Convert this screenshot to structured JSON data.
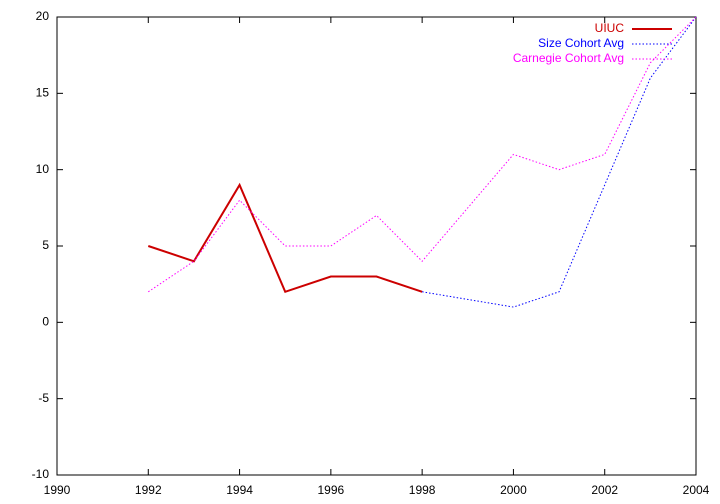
{
  "chart_data": {
    "type": "line",
    "x": [
      1992,
      1993,
      1994,
      1995,
      1996,
      1997,
      1998,
      1999,
      2000,
      2001,
      2002,
      2003,
      2004
    ],
    "series": [
      {
        "name": "UIUC",
        "color": "#cc0000",
        "style": "solid",
        "values": [
          5,
          4,
          9,
          2,
          3,
          3,
          2,
          null,
          null,
          null,
          null,
          null,
          null
        ]
      },
      {
        "name": "Size Cohort Avg",
        "color": "#0000ff",
        "style": "dotted",
        "values": [
          null,
          null,
          null,
          null,
          null,
          null,
          2,
          1.5,
          1,
          2,
          9,
          16,
          20
        ]
      },
      {
        "name": "Carnegie Cohort Avg",
        "color": "#ff00ff",
        "style": "dotted",
        "values": [
          2,
          4,
          8,
          5,
          5,
          7,
          4,
          7.5,
          11,
          10,
          11,
          17,
          20
        ]
      }
    ],
    "xlim": [
      1990,
      2004
    ],
    "xticks": [
      1990,
      1992,
      1994,
      1996,
      1998,
      2000,
      2002,
      2004
    ],
    "ylim": [
      -10,
      20
    ],
    "yticks": [
      -10,
      -5,
      0,
      5,
      10,
      15,
      20
    ],
    "legend": "top-right"
  }
}
